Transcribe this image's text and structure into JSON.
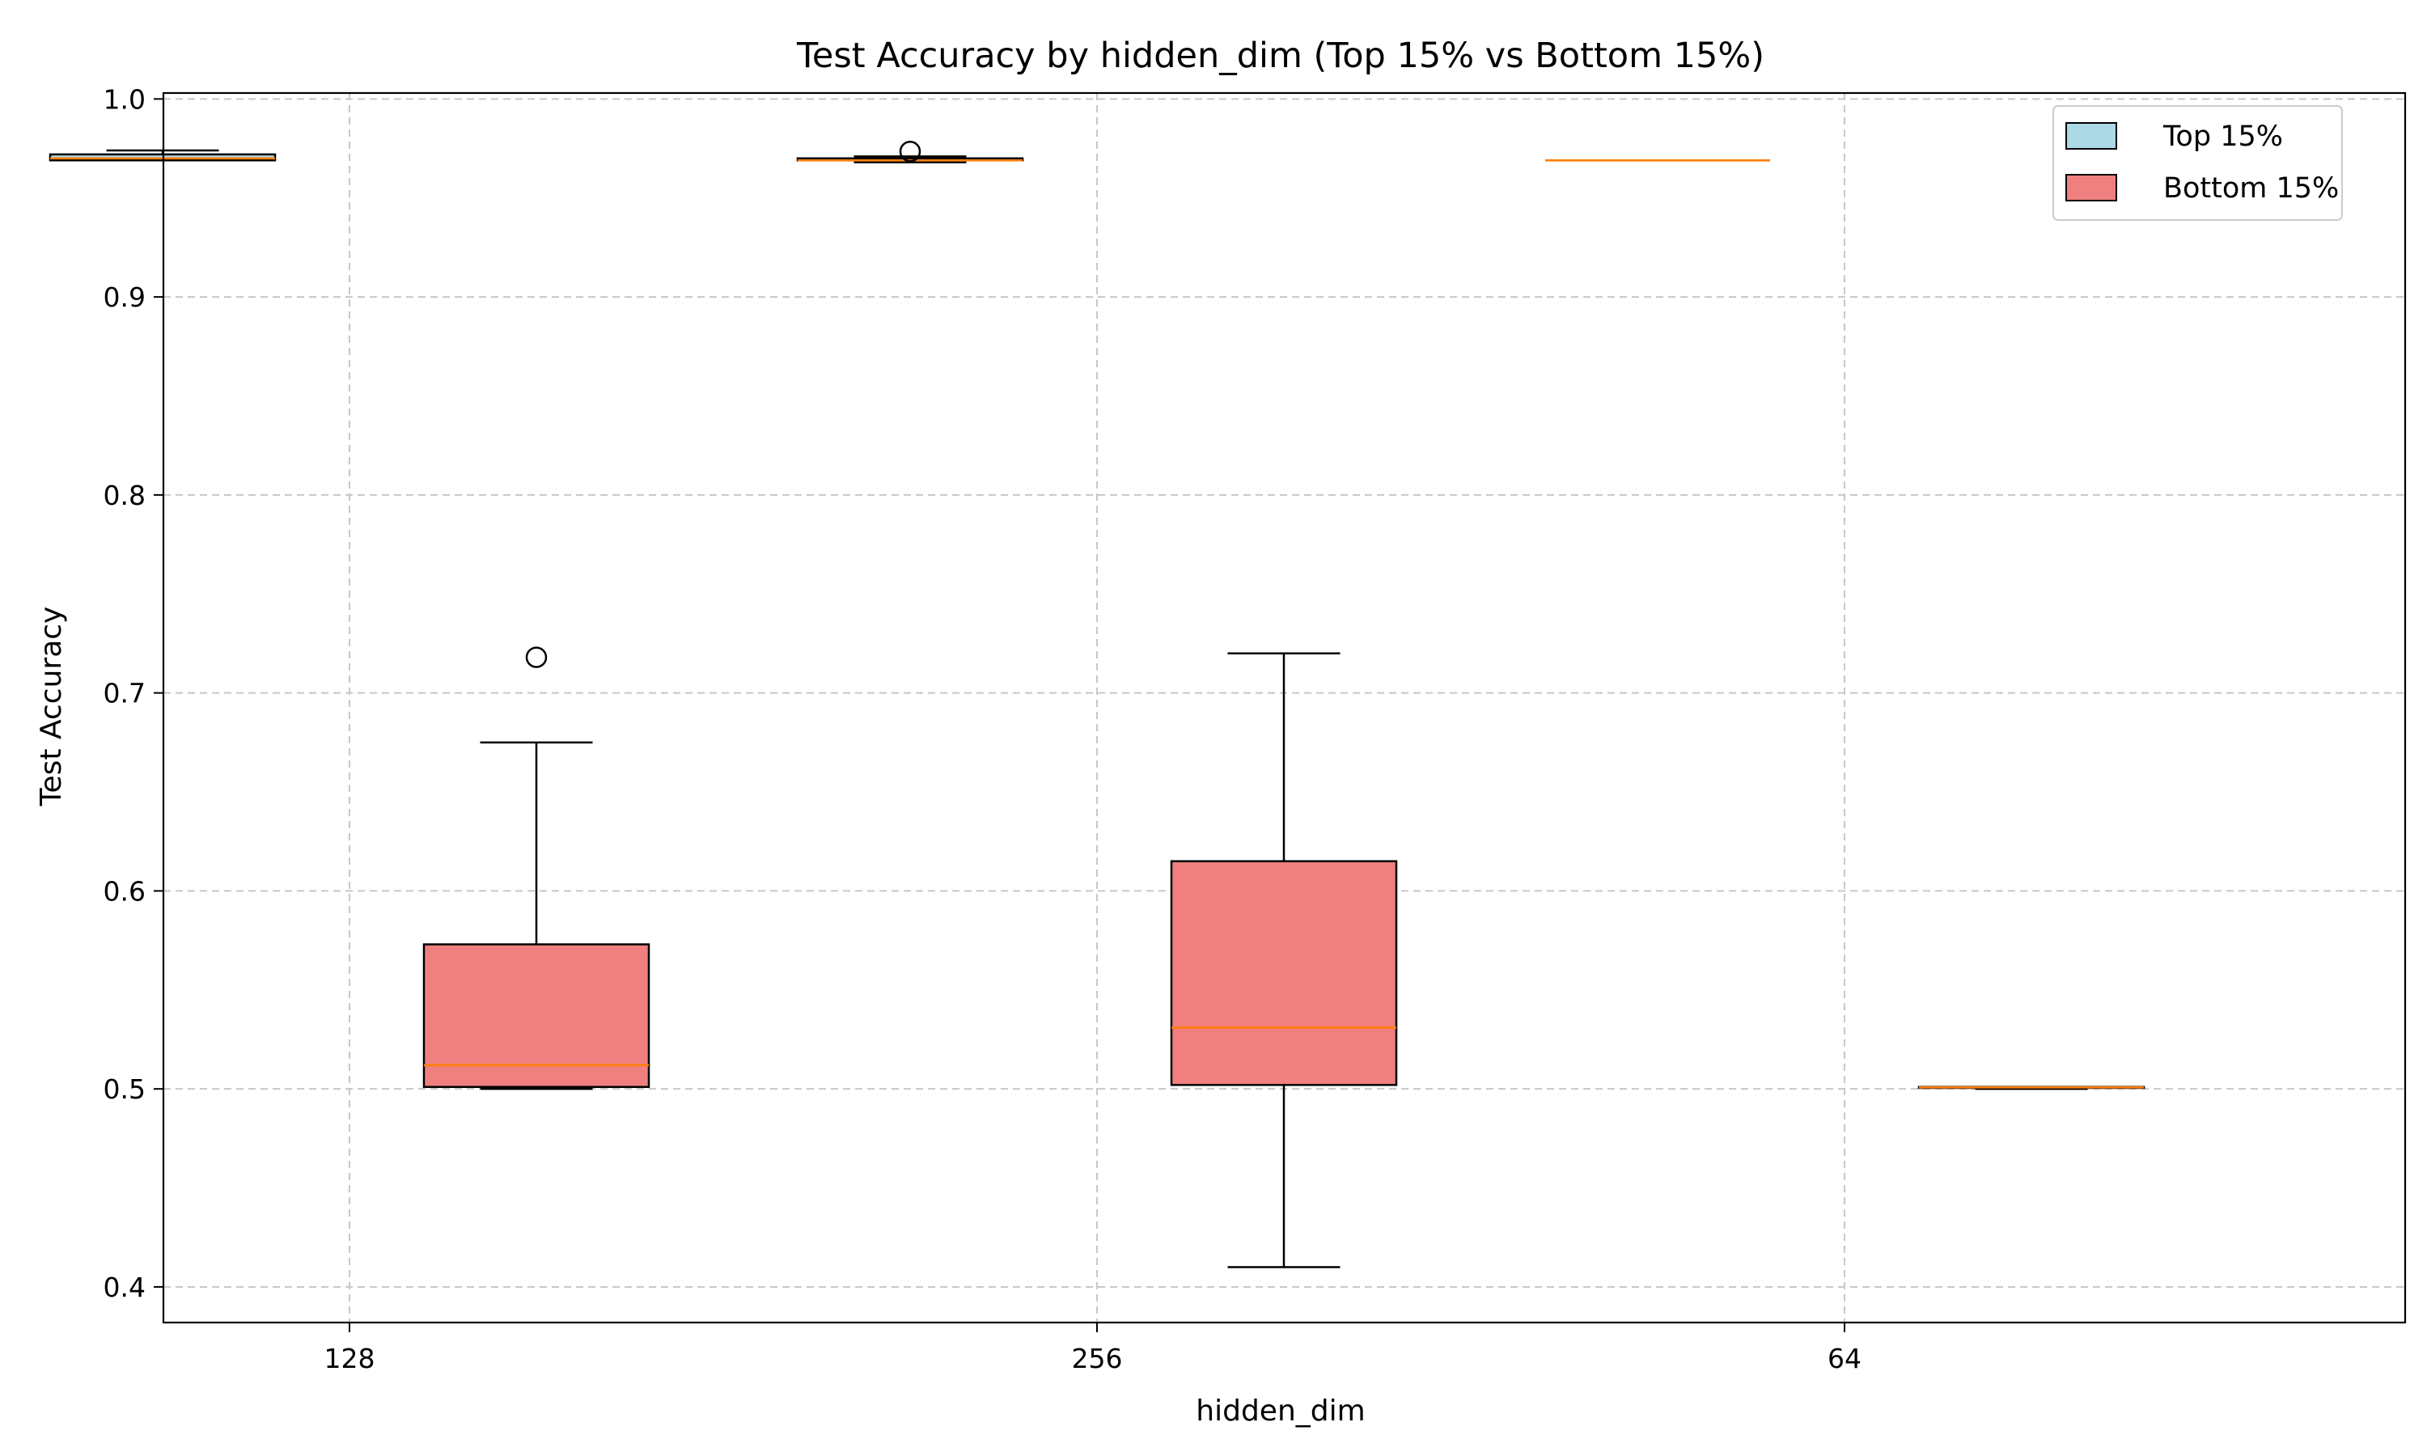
{
  "chart_data": {
    "type": "box",
    "title": "Test Accuracy by hidden_dim (Top 15% vs Bottom 15%)",
    "xlabel": "hidden_dim",
    "ylabel": "Test Accuracy",
    "categories": [
      "128",
      "256",
      "64"
    ],
    "ylim": [
      0.382,
      1.003
    ],
    "yticks": [
      0.4,
      0.5,
      0.6,
      0.7,
      0.8,
      0.9,
      1.0
    ],
    "ytick_labels": [
      "0.4",
      "0.5",
      "0.6",
      "0.7",
      "0.8",
      "0.9",
      "1.0"
    ],
    "grid": true,
    "legend_position": "top-right",
    "series": [
      {
        "name": "Top 15%",
        "color": "#add8e6",
        "boxes": [
          {
            "category": "128",
            "whisker_low": 0.969,
            "q1": 0.969,
            "median": 0.97,
            "q3": 0.972,
            "whisker_high": 0.974,
            "outliers": []
          },
          {
            "category": "256",
            "whisker_low": 0.968,
            "q1": 0.969,
            "median": 0.969,
            "q3": 0.97,
            "whisker_high": 0.971,
            "outliers": [
              0.9735
            ]
          },
          {
            "category": "64",
            "whisker_low": 0.969,
            "q1": 0.969,
            "median": 0.969,
            "q3": 0.969,
            "whisker_high": 0.969,
            "outliers": []
          }
        ]
      },
      {
        "name": "Bottom 15%",
        "color": "#f08080",
        "boxes": [
          {
            "category": "128",
            "whisker_low": 0.5,
            "q1": 0.501,
            "median": 0.512,
            "q3": 0.573,
            "whisker_high": 0.675,
            "outliers": [
              0.718
            ]
          },
          {
            "category": "256",
            "whisker_low": 0.41,
            "q1": 0.502,
            "median": 0.531,
            "q3": 0.615,
            "whisker_high": 0.72,
            "outliers": []
          },
          {
            "category": "64",
            "whisker_low": 0.5,
            "q1": 0.5005,
            "median": 0.5008,
            "q3": 0.501,
            "whisker_high": 0.501,
            "outliers": []
          }
        ]
      }
    ],
    "median_color": "#ff7f0e",
    "grid_color": "#c8c8c8"
  }
}
